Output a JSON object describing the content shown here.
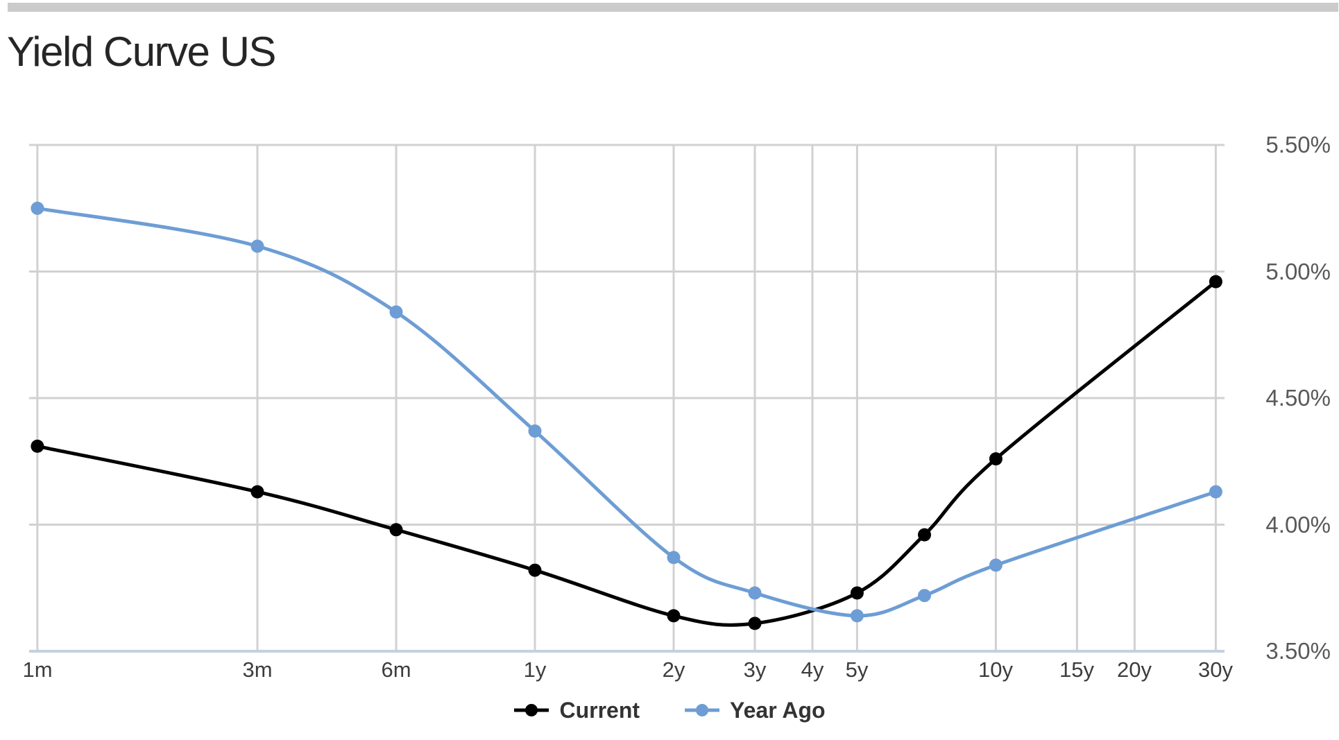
{
  "page": {
    "background": "#ffffff",
    "top_bar_color": "#cbcbcb"
  },
  "header": {
    "title": "Yield Curve US"
  },
  "legend": {
    "items": [
      {
        "label": "Current",
        "color": "#000000"
      },
      {
        "label": "Year Ago",
        "color": "#6D9DD4"
      }
    ]
  },
  "chart_data": {
    "type": "line",
    "title": "Yield Curve US",
    "x_axis": {
      "scale": "log",
      "unit": "time to maturity",
      "tick_labels": [
        "1m",
        "3m",
        "6m",
        "1y",
        "2y",
        "3y",
        "4y",
        "5y",
        "10y",
        "15y",
        "20y",
        "30y"
      ],
      "tick_years": [
        0.0833,
        0.25,
        0.5,
        1,
        2,
        3,
        4,
        5,
        10,
        15,
        20,
        30
      ]
    },
    "y_axis": {
      "position": "right",
      "tick_labels": [
        "5.50%",
        "5.00%",
        "4.50%",
        "4.00%",
        "3.50%"
      ],
      "tick_values": [
        5.5,
        5.0,
        4.5,
        4.0,
        3.5
      ],
      "min": 3.5,
      "max": 5.5
    },
    "categories": [
      "1m",
      "3m",
      "6m",
      "1y",
      "2y",
      "3y",
      "5y",
      "7y",
      "10y",
      "30y"
    ],
    "maturity_years": [
      0.0833,
      0.25,
      0.5,
      1,
      2,
      3,
      5,
      7,
      10,
      30
    ],
    "series": [
      {
        "name": "Current",
        "color": "#000000",
        "values": [
          4.31,
          4.13,
          3.98,
          3.82,
          3.64,
          3.61,
          3.73,
          3.96,
          4.26,
          4.96
        ]
      },
      {
        "name": "Year Ago",
        "color": "#6D9DD4",
        "values": [
          5.25,
          5.1,
          4.84,
          4.37,
          3.87,
          3.73,
          3.64,
          3.72,
          3.84,
          4.13
        ]
      }
    ],
    "grid": true,
    "legend_position": "bottom",
    "grid_color": "#d1d1d1",
    "axis_line_color": "#c5cfdf"
  }
}
